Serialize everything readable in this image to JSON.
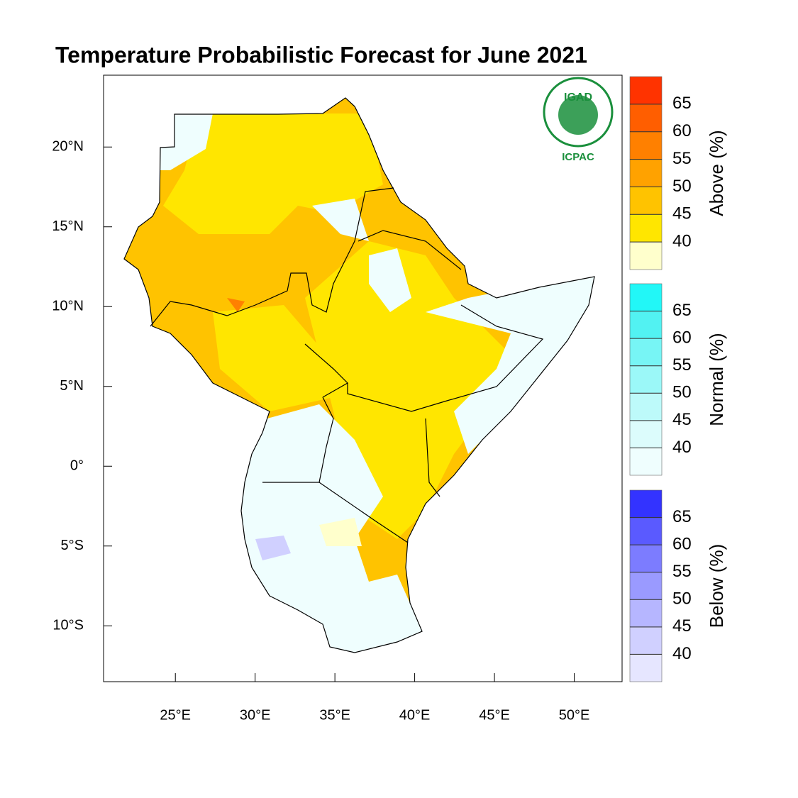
{
  "title": "Temperature Probabilistic Forecast for June 2021",
  "map": {
    "xlim": [
      20.5,
      53
    ],
    "ylim": [
      -13.5,
      24.5
    ],
    "xticks": [
      {
        "value": 25,
        "label": "25°E"
      },
      {
        "value": 30,
        "label": "30°E"
      },
      {
        "value": 35,
        "label": "35°E"
      },
      {
        "value": 40,
        "label": "40°E"
      },
      {
        "value": 45,
        "label": "45°E"
      },
      {
        "value": 50,
        "label": "50°E"
      }
    ],
    "yticks": [
      {
        "value": 20,
        "label": "20°N"
      },
      {
        "value": 15,
        "label": "15°N"
      },
      {
        "value": 10,
        "label": "10°N"
      },
      {
        "value": 5,
        "label": "5°N"
      },
      {
        "value": 0,
        "label": "0°"
      },
      {
        "value": -5,
        "label": "5°S"
      },
      {
        "value": -10,
        "label": "10°S"
      }
    ]
  },
  "legend": [
    {
      "title": "Above (%)",
      "levels": [
        40,
        45,
        50,
        55,
        60,
        65
      ],
      "colors": [
        "#ffffcc",
        "#ffe600",
        "#ffc300",
        "#ffa200",
        "#ff8000",
        "#ff5e00",
        "#ff3300"
      ]
    },
    {
      "title": "Normal (%)",
      "levels": [
        40,
        45,
        50,
        55,
        60,
        65
      ],
      "colors": [
        "#effefe",
        "#dcfcfc",
        "#bdfafa",
        "#9bf8f8",
        "#77f5f5",
        "#52f2f2",
        "#22f7f7"
      ]
    },
    {
      "title": "Below (%)",
      "levels": [
        40,
        45,
        50,
        55,
        60,
        65
      ],
      "colors": [
        "#e6e6ff",
        "#d0d0ff",
        "#b6b6ff",
        "#9a9aff",
        "#7c7cff",
        "#5a5aff",
        "#3333ff"
      ]
    }
  ],
  "logo": {
    "name": "IGAD",
    "org": "ICPAC"
  }
}
